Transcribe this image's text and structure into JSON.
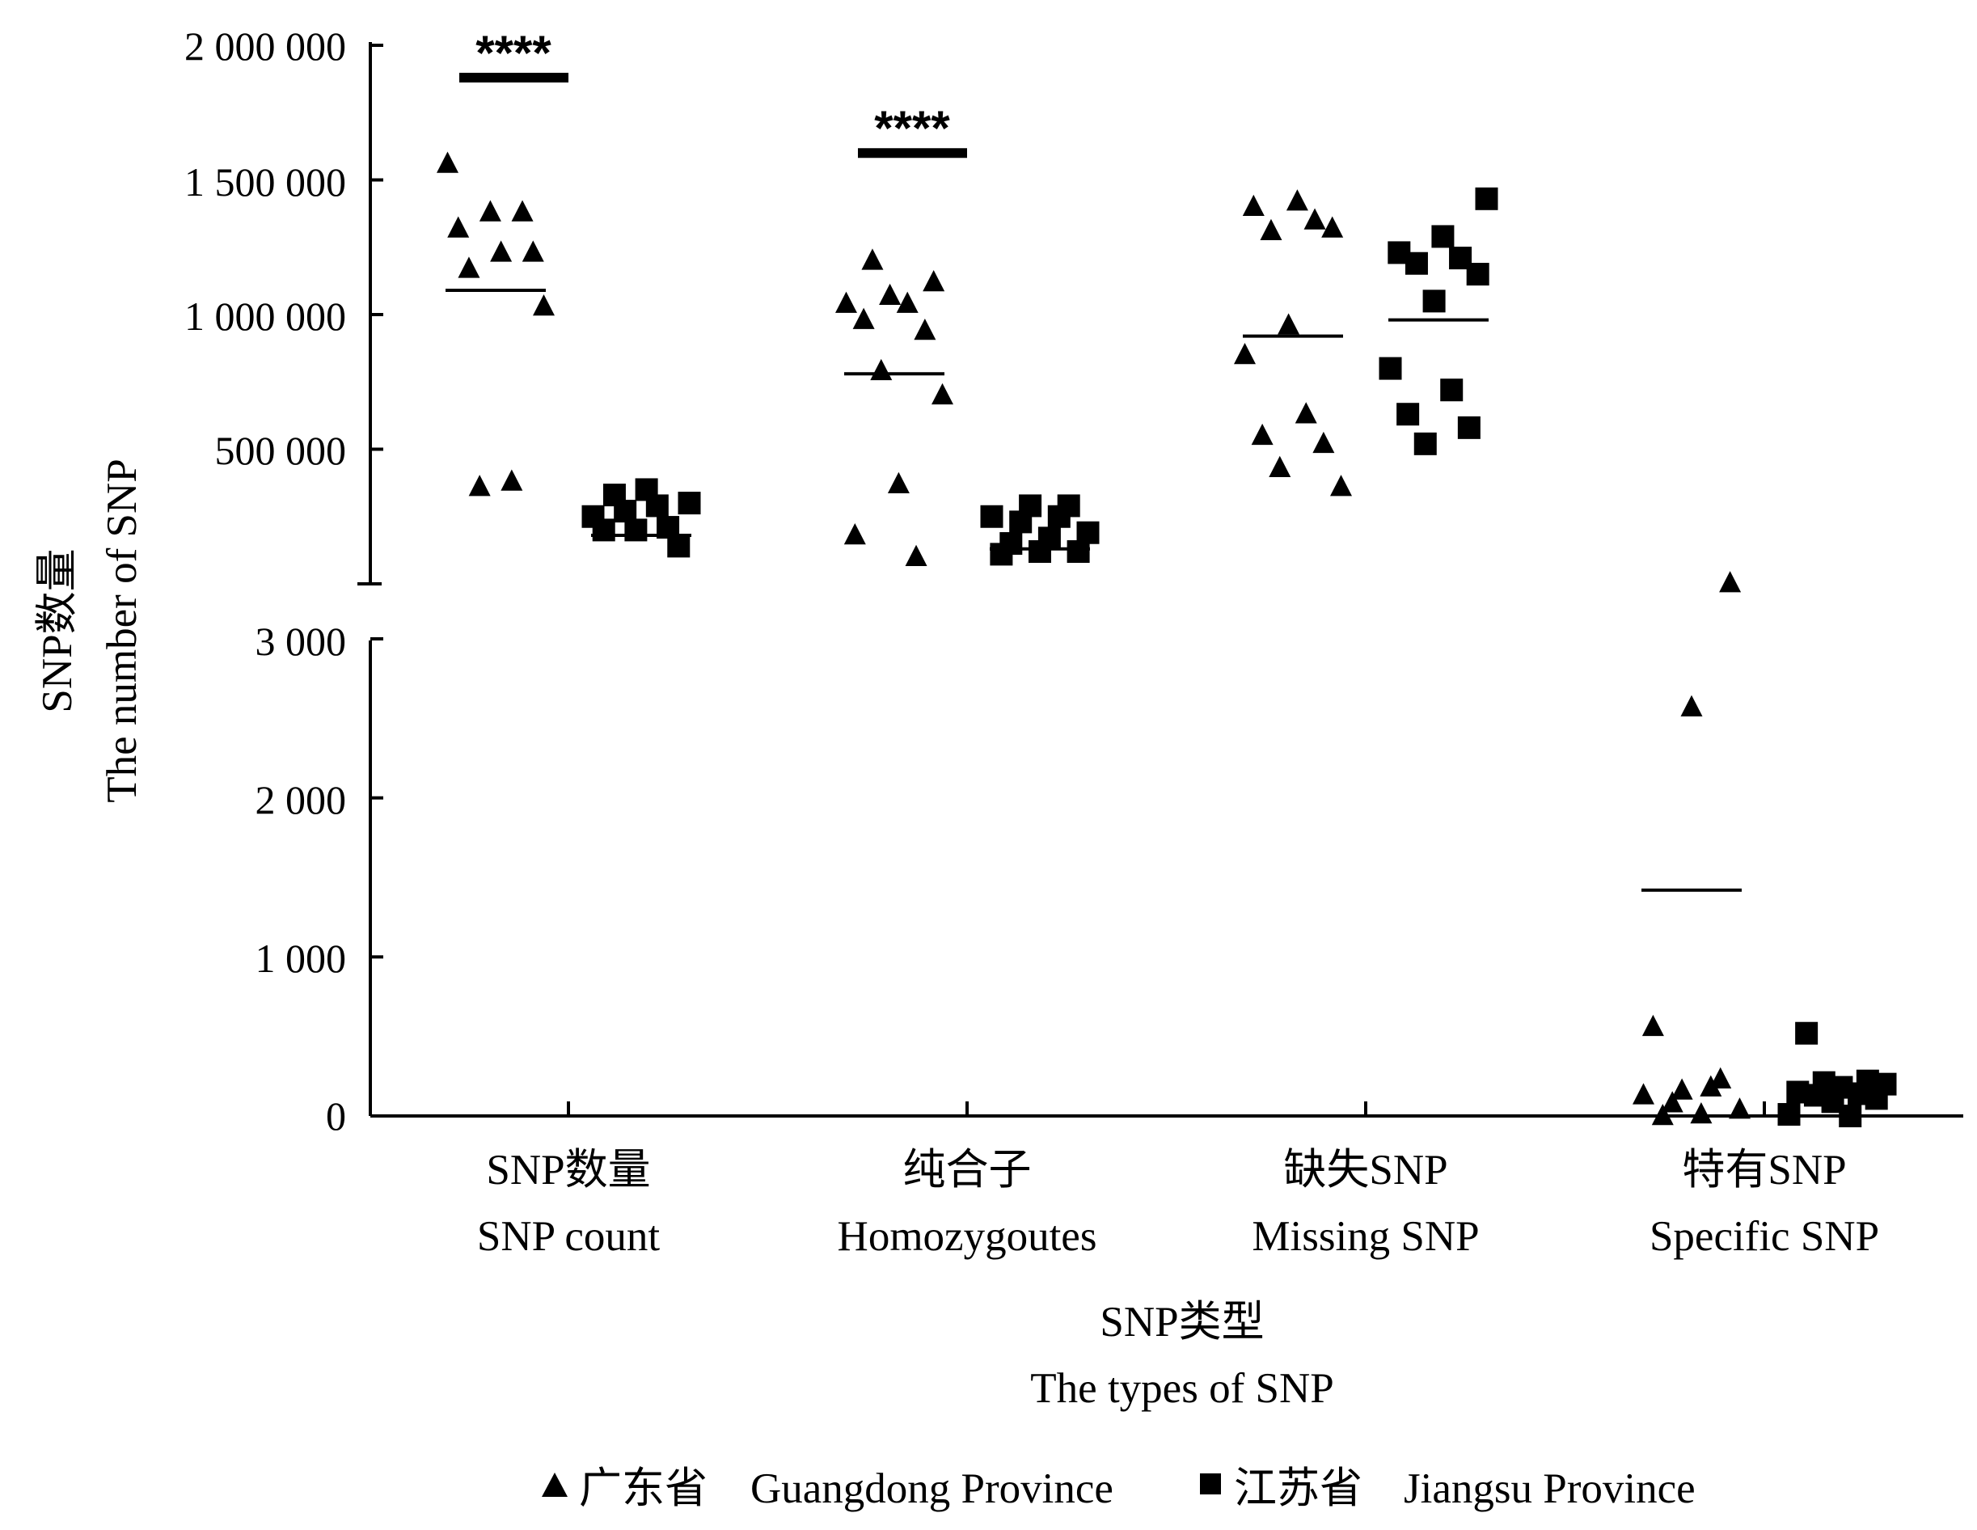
{
  "chart_data": {
    "type": "scatter",
    "y_axis": {
      "label_zh": "SNP数量",
      "label_en": "The number of SNP",
      "broken": true,
      "upper_segment": {
        "ylim": [
          0,
          2000000
        ],
        "ticks": [
          500000,
          1000000,
          1500000,
          2000000
        ],
        "tick_labels": [
          "500 000",
          "1 000 000",
          "1 500 000",
          "2 000 000"
        ]
      },
      "lower_segment": {
        "ylim": [
          0,
          3000
        ],
        "ticks": [
          0,
          1000,
          2000,
          3000
        ],
        "tick_labels": [
          "0",
          "1 000",
          "2 000",
          "3 000"
        ]
      }
    },
    "x_axis": {
      "label_zh": "SNP类型",
      "label_en": "The types of SNP"
    },
    "categories": [
      {
        "zh": "SNP数量",
        "en": "SNP count",
        "segment": "upper"
      },
      {
        "zh": "纯合子",
        "en": "Homozygoutes",
        "segment": "upper"
      },
      {
        "zh": "缺失SNP",
        "en": "Missing SNP",
        "segment": "upper"
      },
      {
        "zh": "特有SNP",
        "en": "Specific SNP",
        "segment": "lower"
      }
    ],
    "series": [
      {
        "name_zh": "广东省",
        "name_en": "Guangdong Province",
        "marker": "triangle",
        "color": "#000000",
        "points": [
          [
            1560000,
            1380000,
            1380000,
            1320000,
            1230000,
            1230000,
            1170000,
            1030000,
            380000,
            360000
          ],
          [
            1200000,
            1120000,
            1070000,
            1040000,
            1040000,
            980000,
            940000,
            790000,
            700000,
            370000,
            180000,
            100000
          ],
          [
            1420000,
            1400000,
            1350000,
            1310000,
            1320000,
            960000,
            850000,
            630000,
            550000,
            520000,
            430000,
            360000
          ],
          [
            3350,
            2570,
            560,
            230,
            160,
            130,
            180,
            80,
            40,
            10,
            0
          ]
        ],
        "means": [
          1090000,
          780000,
          920000,
          1420
        ]
      },
      {
        "name_zh": "江苏省",
        "name_en": "Jiangsu Province",
        "marker": "square",
        "color": "#000000",
        "points": [
          [
            350000,
            330000,
            300000,
            290000,
            270000,
            250000,
            210000,
            200000,
            200000,
            140000
          ],
          [
            290000,
            290000,
            250000,
            250000,
            230000,
            190000,
            170000,
            150000,
            120000,
            120000,
            110000
          ],
          [
            1430000,
            1290000,
            1230000,
            1210000,
            1190000,
            1150000,
            1050000,
            800000,
            720000,
            630000,
            580000,
            520000
          ],
          [
            520,
            220,
            210,
            200,
            180,
            150,
            140,
            130,
            110,
            90,
            10,
            0
          ]
        ],
        "means": [
          180000,
          130000,
          980000,
          130
        ]
      }
    ],
    "significance": [
      {
        "category_index": 0,
        "label": "****",
        "level": 1880000
      },
      {
        "category_index": 1,
        "label": "****",
        "level": 1600000
      }
    ],
    "legend": {
      "position": "bottom-center"
    }
  }
}
